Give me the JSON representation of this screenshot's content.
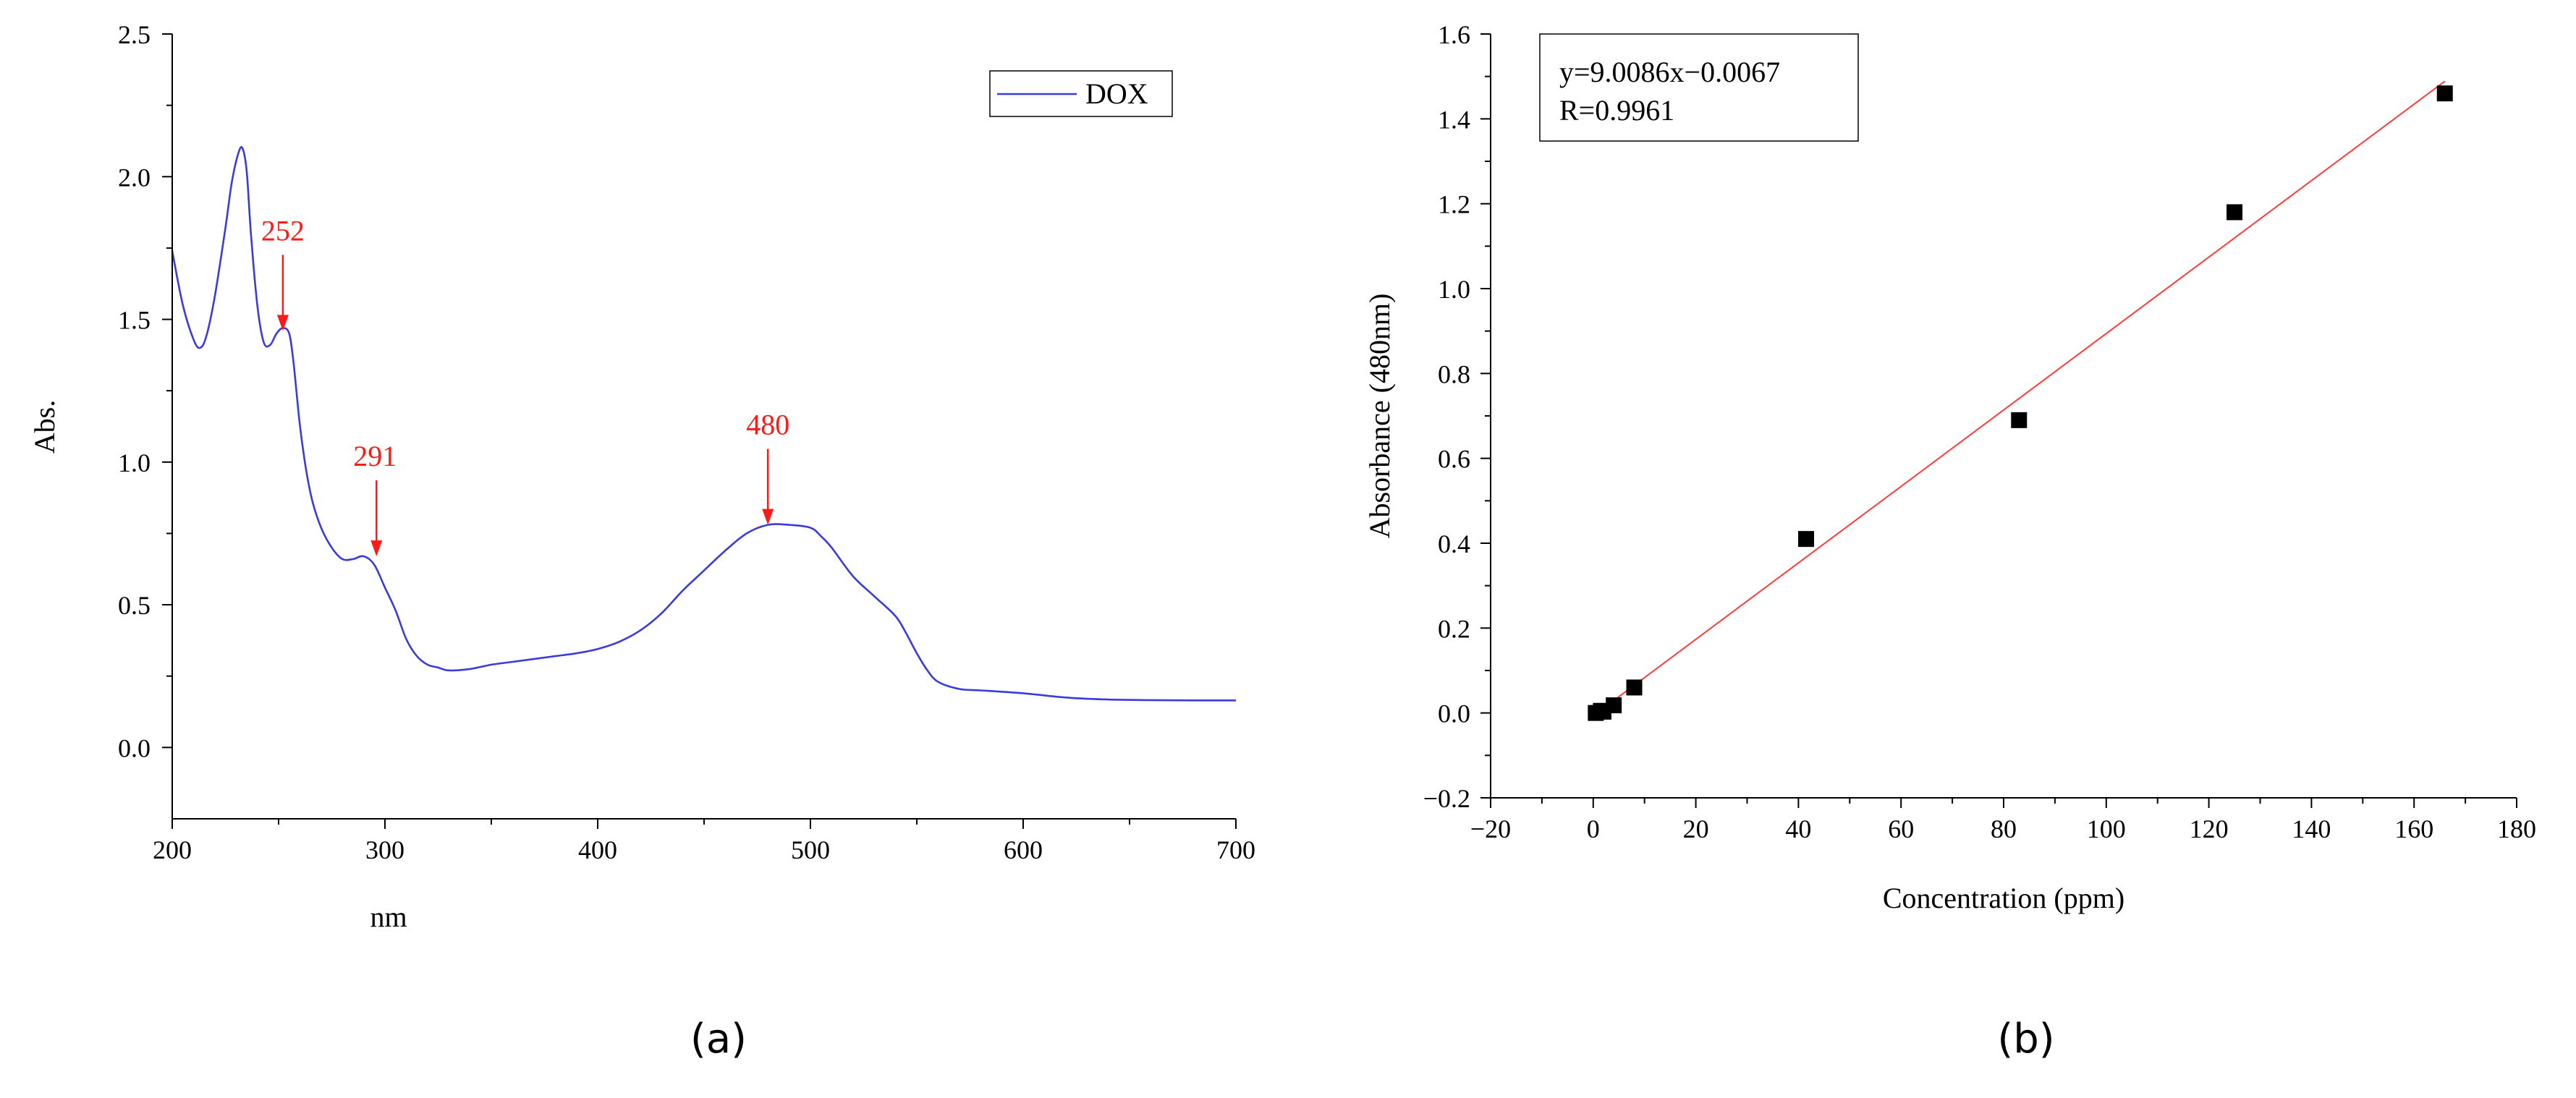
{
  "colors": {
    "curve": "#3b3bdc",
    "annotation": "#ff1a1a",
    "fit_line": "#ff3b3b",
    "axis": "#000000",
    "marker": "#000000"
  },
  "chart_data": [
    {
      "type": "line",
      "panel_label": "(a)",
      "xlabel": "nm",
      "ylabel": "Abs.",
      "xlim": [
        200,
        700
      ],
      "ylim": [
        -0.25,
        2.5
      ],
      "xticks": [
        200,
        300,
        400,
        500,
        600,
        700
      ],
      "xtick_labels": [
        "200",
        "300",
        "400",
        "500",
        "600",
        "700"
      ],
      "yticks": [
        0.0,
        0.5,
        1.0,
        1.5,
        2.0,
        2.5
      ],
      "ytick_labels": [
        "0.0",
        "0.5",
        "1.0",
        "1.5",
        "2.0",
        "2.5"
      ],
      "legend": {
        "position": "top-right",
        "entries": [
          "DOX"
        ]
      },
      "series": [
        {
          "name": "DOX",
          "x": [
            200,
            205,
            210,
            213,
            216,
            220,
            225,
            228,
            231,
            233,
            235,
            237,
            240,
            243,
            246,
            249,
            252,
            255,
            257,
            260,
            263,
            266,
            270,
            275,
            280,
            285,
            290,
            295,
            300,
            305,
            310,
            315,
            320,
            325,
            330,
            340,
            350,
            360,
            370,
            380,
            390,
            400,
            410,
            420,
            430,
            440,
            450,
            460,
            470,
            480,
            490,
            500,
            505,
            510,
            520,
            530,
            540,
            545,
            550,
            555,
            560,
            570,
            580,
            600,
            620,
            640,
            660,
            680,
            700
          ],
          "y": [
            1.74,
            1.55,
            1.43,
            1.4,
            1.44,
            1.58,
            1.82,
            1.98,
            2.08,
            2.1,
            2.02,
            1.8,
            1.55,
            1.42,
            1.41,
            1.45,
            1.47,
            1.45,
            1.35,
            1.13,
            0.97,
            0.86,
            0.77,
            0.7,
            0.66,
            0.66,
            0.67,
            0.64,
            0.56,
            0.48,
            0.38,
            0.32,
            0.29,
            0.28,
            0.27,
            0.275,
            0.29,
            0.3,
            0.31,
            0.32,
            0.33,
            0.345,
            0.37,
            0.41,
            0.47,
            0.55,
            0.62,
            0.69,
            0.75,
            0.78,
            0.78,
            0.77,
            0.74,
            0.7,
            0.6,
            0.53,
            0.46,
            0.4,
            0.33,
            0.27,
            0.23,
            0.205,
            0.2,
            0.19,
            0.175,
            0.168,
            0.166,
            0.165,
            0.165
          ]
        }
      ],
      "annotations": [
        {
          "label": "252",
          "x": 252,
          "y": 1.47
        },
        {
          "label": "291",
          "x": 296,
          "y": 0.68
        },
        {
          "label": "480",
          "x": 480,
          "y": 0.79
        }
      ]
    },
    {
      "type": "scatter",
      "panel_label": "(b)",
      "xlabel": "Concentration (ppm)",
      "ylabel": "Absorbance (480nm)",
      "xlim": [
        -20,
        180
      ],
      "ylim": [
        -0.2,
        1.6
      ],
      "xticks": [
        -20,
        0,
        20,
        40,
        60,
        80,
        100,
        120,
        140,
        160,
        180
      ],
      "xtick_labels": [
        "−20",
        "0",
        "20",
        "40",
        "60",
        "80",
        "100",
        "120",
        "140",
        "160",
        "180"
      ],
      "yticks": [
        -0.2,
        0.0,
        0.2,
        0.4,
        0.6,
        0.8,
        1.0,
        1.2,
        1.4,
        1.6
      ],
      "ytick_labels": [
        "−0.2",
        "0.0",
        "0.2",
        "0.4",
        "0.6",
        "0.8",
        "1.0",
        "1.2",
        "1.4",
        "1.6"
      ],
      "points": {
        "x": [
          0.5,
          1.5,
          2.0,
          4.0,
          8.0,
          41.5,
          83.0,
          125.0,
          166.0
        ],
        "y": [
          0.0,
          0.005,
          0.003,
          0.018,
          0.06,
          0.41,
          0.69,
          1.18,
          1.46
        ]
      },
      "fit": {
        "slope": 9.0086,
        "intercept": -0.0067,
        "x_range": [
          0.5,
          166
        ],
        "equation": "y=9.0086x−0.0067",
        "r": "R=0.9961"
      }
    }
  ]
}
